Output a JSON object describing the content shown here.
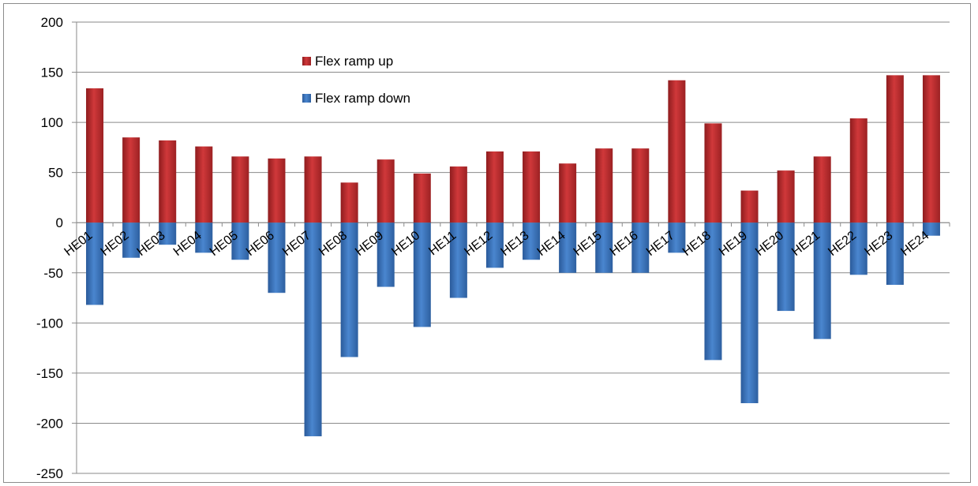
{
  "chart_data": {
    "type": "bar",
    "stacked": true,
    "categories": [
      "HE01",
      "HE02",
      "HE03",
      "HE04",
      "HE05",
      "HE06",
      "HE07",
      "HE08",
      "HE09",
      "HE10",
      "HE11",
      "HE12",
      "HE13",
      "HE14",
      "HE15",
      "HE16",
      "HE17",
      "HE18",
      "HE19",
      "HE20",
      "HE21",
      "HE22",
      "HE23",
      "HE24"
    ],
    "series": [
      {
        "name": "Flex ramp up",
        "color": "#c0292b",
        "values": [
          134,
          85,
          82,
          76,
          66,
          64,
          66,
          40,
          63,
          49,
          56,
          71,
          71,
          59,
          74,
          74,
          142,
          99,
          32,
          52,
          66,
          104,
          147,
          147
        ]
      },
      {
        "name": "Flex ramp down",
        "color": "#3a73bd",
        "values": [
          -82,
          -35,
          -22,
          -30,
          -37,
          -70,
          -213,
          -134,
          -64,
          -104,
          -75,
          -45,
          -37,
          -50,
          -50,
          -50,
          -30,
          -137,
          -180,
          -88,
          -116,
          -52,
          -62,
          -13
        ]
      }
    ],
    "ylim": [
      -250,
      200
    ],
    "yticks": [
      200,
      150,
      100,
      50,
      0,
      -50,
      -100,
      -150,
      -200,
      -250
    ],
    "grid": true,
    "legend": "top-left",
    "title": "",
    "xlabel": "",
    "ylabel": ""
  }
}
